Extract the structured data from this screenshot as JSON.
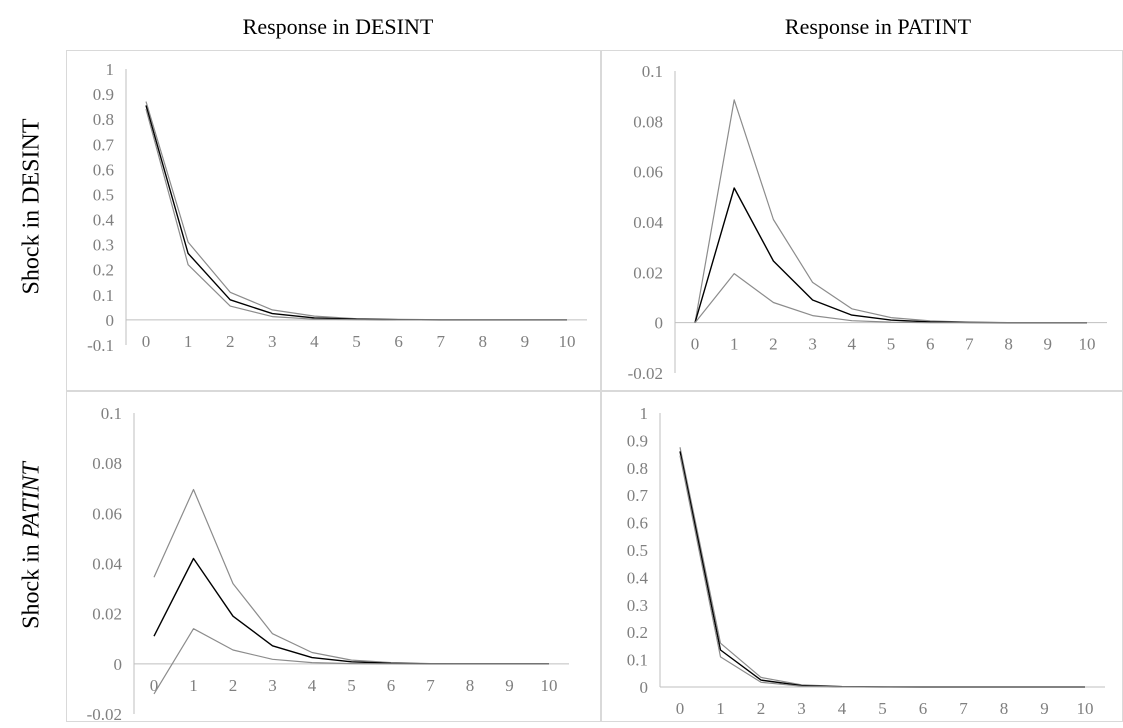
{
  "column_titles": [
    "Response in DESINT",
    "Response in PATINT"
  ],
  "row_titles": [
    {
      "prefix": "Shock in ",
      "var": "DESINT"
    },
    {
      "prefix": "Shock in ",
      "var": "PATINT"
    }
  ],
  "colors": {
    "estimate": "#000000",
    "bands": "#8c8c8c",
    "axis": "#bfbfbf",
    "border": "#d9d9d9",
    "tick_text": "#7f7f7f"
  },
  "chart_data": [
    {
      "type": "line",
      "panel": "Shock in DESINT / Response in DESINT",
      "x": [
        0,
        1,
        2,
        3,
        4,
        5,
        6,
        7,
        8,
        9,
        10
      ],
      "ylim": [
        -0.1,
        1
      ],
      "yticks": [
        -0.1,
        0,
        0.1,
        0.2,
        0.3,
        0.4,
        0.5,
        0.6,
        0.7,
        0.8,
        0.9,
        1
      ],
      "ytick_labels": [
        "-0.1",
        "0",
        "0.1",
        "0.2",
        "0.3",
        "0.4",
        "0.5",
        "0.6",
        "0.7",
        "0.8",
        "0.9",
        "1"
      ],
      "xtick_labels": [
        "0",
        "1",
        "2",
        "3",
        "4",
        "5",
        "6",
        "7",
        "8",
        "9",
        "10"
      ],
      "series": [
        {
          "role": "upper",
          "values": [
            0.87,
            0.31,
            0.11,
            0.04,
            0.015,
            0.005,
            0.002,
            0.001,
            0,
            0,
            0
          ]
        },
        {
          "role": "estimate",
          "values": [
            0.855,
            0.265,
            0.08,
            0.025,
            0.008,
            0.003,
            0.001,
            0,
            0,
            0,
            0
          ]
        },
        {
          "role": "lower",
          "values": [
            0.84,
            0.22,
            0.055,
            0.013,
            0.003,
            0.001,
            0,
            0,
            0,
            0,
            0
          ]
        }
      ]
    },
    {
      "type": "line",
      "panel": "Shock in DESINT / Response in PATINT",
      "x": [
        0,
        1,
        2,
        3,
        4,
        5,
        6,
        7,
        8,
        9,
        10
      ],
      "ylim": [
        -0.02,
        0.1
      ],
      "yticks": [
        -0.02,
        0,
        0.02,
        0.04,
        0.06,
        0.08,
        0.1
      ],
      "ytick_labels": [
        "-0.02",
        "0",
        "0.02",
        "0.04",
        "0.06",
        "0.08",
        "0.1"
      ],
      "xtick_labels": [
        "0",
        "1",
        "2",
        "3",
        "4",
        "5",
        "6",
        "7",
        "8",
        "9",
        "10"
      ],
      "series": [
        {
          "role": "upper",
          "values": [
            0,
            0.0885,
            0.041,
            0.016,
            0.0055,
            0.002,
            0.0007,
            0.0002,
            0,
            0,
            0
          ]
        },
        {
          "role": "estimate",
          "values": [
            0,
            0.0535,
            0.0245,
            0.009,
            0.003,
            0.001,
            0.0003,
            0.0001,
            0,
            0,
            0
          ]
        },
        {
          "role": "lower",
          "values": [
            0,
            0.0195,
            0.008,
            0.0028,
            0.0008,
            0.0002,
            0,
            0,
            0,
            0,
            0
          ]
        }
      ]
    },
    {
      "type": "line",
      "panel": "Shock in PATINT / Response in DESINT",
      "x": [
        0,
        1,
        2,
        3,
        4,
        5,
        6,
        7,
        8,
        9,
        10
      ],
      "ylim": [
        -0.02,
        0.1
      ],
      "yticks": [
        -0.02,
        0,
        0.02,
        0.04,
        0.06,
        0.08,
        0.1
      ],
      "ytick_labels": [
        "-0.02",
        "0",
        "0.02",
        "0.04",
        "0.06",
        "0.08",
        "0.1"
      ],
      "xtick_labels": [
        "0",
        "1",
        "2",
        "3",
        "4",
        "5",
        "6",
        "7",
        "8",
        "9",
        "10"
      ],
      "series": [
        {
          "role": "upper",
          "values": [
            0.0345,
            0.0695,
            0.032,
            0.012,
            0.0045,
            0.0015,
            0.0005,
            0.0001,
            0,
            0,
            0
          ]
        },
        {
          "role": "estimate",
          "values": [
            0.011,
            0.042,
            0.019,
            0.0072,
            0.0025,
            0.0008,
            0.0002,
            0,
            0,
            0,
            0
          ]
        },
        {
          "role": "lower",
          "values": [
            -0.012,
            0.014,
            0.0055,
            0.0018,
            0.0005,
            0.0001,
            0,
            0,
            0,
            0,
            0
          ]
        }
      ]
    },
    {
      "type": "line",
      "panel": "Shock in PATINT / Response in PATINT",
      "x": [
        0,
        1,
        2,
        3,
        4,
        5,
        6,
        7,
        8,
        9,
        10
      ],
      "ylim": [
        0,
        1
      ],
      "yticks": [
        0,
        0.1,
        0.2,
        0.3,
        0.4,
        0.5,
        0.6,
        0.7,
        0.8,
        0.9,
        1
      ],
      "ytick_labels": [
        "0",
        "0.1",
        "0.2",
        "0.3",
        "0.4",
        "0.5",
        "0.6",
        "0.7",
        "0.8",
        "0.9",
        "1"
      ],
      "xtick_labels": [
        "0",
        "1",
        "2",
        "3",
        "4",
        "5",
        "6",
        "7",
        "8",
        "9",
        "10"
      ],
      "series": [
        {
          "role": "upper",
          "values": [
            0.875,
            0.16,
            0.035,
            0.008,
            0.002,
            0.0005,
            0,
            0,
            0,
            0,
            0
          ]
        },
        {
          "role": "estimate",
          "values": [
            0.86,
            0.135,
            0.025,
            0.005,
            0.001,
            0.0002,
            0,
            0,
            0,
            0,
            0
          ]
        },
        {
          "role": "lower",
          "values": [
            0.845,
            0.11,
            0.017,
            0.003,
            0.0005,
            0,
            0,
            0,
            0,
            0,
            0
          ]
        }
      ]
    }
  ]
}
